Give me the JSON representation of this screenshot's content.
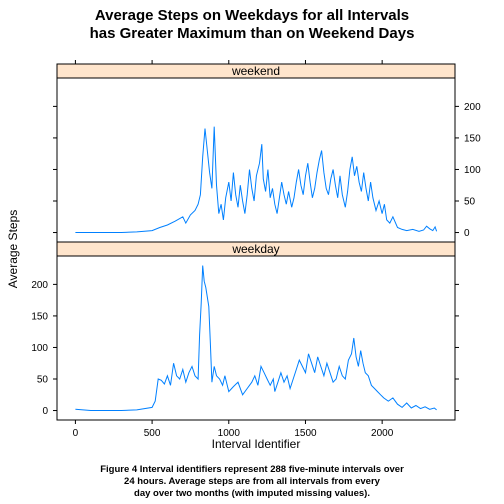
{
  "chart_data": {
    "type": "line",
    "title_lines": [
      "Average Steps on Weekdays for all Intervals",
      "has Greater Maximum than on Weekend Days"
    ],
    "xlabel": "Interval Identifier",
    "ylabel": "Average Steps",
    "caption_lines": [
      "Figure 4 Interval identifiers represent 288 five-minute intervals over",
      "24 hours. Average steps are from all intervals from every",
      "day over two months (with imputed missing values)."
    ],
    "xlim": [
      -120,
      2475
    ],
    "ylim": [
      -15,
      245
    ],
    "x_ticks": [
      0,
      500,
      1000,
      1500,
      2000
    ],
    "y_ticks": [
      0,
      50,
      100,
      150,
      200
    ],
    "colors": {
      "line": "#0080ff",
      "strip": "#ffe5cc",
      "frame": "#000000"
    },
    "panels": [
      {
        "name": "weekend",
        "y_axis_side": "right",
        "points": [
          [
            0,
            0
          ],
          [
            100,
            0
          ],
          [
            200,
            0
          ],
          [
            300,
            0
          ],
          [
            400,
            1
          ],
          [
            500,
            3
          ],
          [
            550,
            8
          ],
          [
            600,
            12
          ],
          [
            650,
            18
          ],
          [
            700,
            25
          ],
          [
            720,
            15
          ],
          [
            750,
            28
          ],
          [
            780,
            35
          ],
          [
            800,
            45
          ],
          [
            815,
            60
          ],
          [
            830,
            120
          ],
          [
            845,
            165
          ],
          [
            860,
            130
          ],
          [
            875,
            95
          ],
          [
            890,
            70
          ],
          [
            905,
            168
          ],
          [
            920,
            75
          ],
          [
            935,
            30
          ],
          [
            950,
            45
          ],
          [
            965,
            20
          ],
          [
            980,
            55
          ],
          [
            1000,
            80
          ],
          [
            1015,
            50
          ],
          [
            1030,
            95
          ],
          [
            1045,
            60
          ],
          [
            1060,
            40
          ],
          [
            1075,
            75
          ],
          [
            1090,
            50
          ],
          [
            1105,
            30
          ],
          [
            1120,
            60
          ],
          [
            1135,
            100
          ],
          [
            1150,
            70
          ],
          [
            1165,
            50
          ],
          [
            1180,
            90
          ],
          [
            1200,
            110
          ],
          [
            1215,
            140
          ],
          [
            1225,
            85
          ],
          [
            1240,
            65
          ],
          [
            1255,
            100
          ],
          [
            1270,
            55
          ],
          [
            1285,
            70
          ],
          [
            1300,
            45
          ],
          [
            1315,
            30
          ],
          [
            1330,
            55
          ],
          [
            1345,
            80
          ],
          [
            1360,
            60
          ],
          [
            1375,
            45
          ],
          [
            1390,
            65
          ],
          [
            1410,
            40
          ],
          [
            1425,
            55
          ],
          [
            1440,
            80
          ],
          [
            1455,
            100
          ],
          [
            1470,
            75
          ],
          [
            1485,
            60
          ],
          [
            1500,
            90
          ],
          [
            1515,
            110
          ],
          [
            1530,
            80
          ],
          [
            1545,
            55
          ],
          [
            1560,
            70
          ],
          [
            1575,
            95
          ],
          [
            1590,
            115
          ],
          [
            1605,
            130
          ],
          [
            1620,
            95
          ],
          [
            1635,
            70
          ],
          [
            1650,
            60
          ],
          [
            1665,
            85
          ],
          [
            1680,
            100
          ],
          [
            1695,
            75
          ],
          [
            1710,
            55
          ],
          [
            1725,
            90
          ],
          [
            1740,
            60
          ],
          [
            1760,
            40
          ],
          [
            1775,
            65
          ],
          [
            1790,
            100
          ],
          [
            1805,
            120
          ],
          [
            1820,
            90
          ],
          [
            1835,
            105
          ],
          [
            1850,
            80
          ],
          [
            1865,
            65
          ],
          [
            1880,
            95
          ],
          [
            1895,
            70
          ],
          [
            1910,
            50
          ],
          [
            1925,
            80
          ],
          [
            1940,
            55
          ],
          [
            1960,
            35
          ],
          [
            1980,
            50
          ],
          [
            2000,
            30
          ],
          [
            2015,
            45
          ],
          [
            2030,
            20
          ],
          [
            2050,
            15
          ],
          [
            2070,
            25
          ],
          [
            2100,
            8
          ],
          [
            2130,
            5
          ],
          [
            2160,
            3
          ],
          [
            2200,
            5
          ],
          [
            2240,
            2
          ],
          [
            2270,
            4
          ],
          [
            2290,
            10
          ],
          [
            2310,
            6
          ],
          [
            2330,
            3
          ],
          [
            2345,
            9
          ],
          [
            2355,
            2
          ]
        ]
      },
      {
        "name": "weekday",
        "y_axis_side": "left",
        "points": [
          [
            0,
            2
          ],
          [
            100,
            0
          ],
          [
            200,
            0
          ],
          [
            300,
            0
          ],
          [
            400,
            1
          ],
          [
            500,
            5
          ],
          [
            520,
            15
          ],
          [
            540,
            50
          ],
          [
            560,
            48
          ],
          [
            580,
            42
          ],
          [
            600,
            55
          ],
          [
            620,
            40
          ],
          [
            640,
            75
          ],
          [
            660,
            55
          ],
          [
            680,
            50
          ],
          [
            700,
            65
          ],
          [
            720,
            45
          ],
          [
            740,
            60
          ],
          [
            760,
            70
          ],
          [
            780,
            55
          ],
          [
            800,
            50
          ],
          [
            810,
            120
          ],
          [
            820,
            170
          ],
          [
            830,
            230
          ],
          [
            840,
            205
          ],
          [
            850,
            195
          ],
          [
            860,
            180
          ],
          [
            870,
            165
          ],
          [
            880,
            105
          ],
          [
            890,
            45
          ],
          [
            905,
            70
          ],
          [
            920,
            55
          ],
          [
            940,
            50
          ],
          [
            960,
            40
          ],
          [
            975,
            55
          ],
          [
            1000,
            30
          ],
          [
            1030,
            38
          ],
          [
            1060,
            45
          ],
          [
            1090,
            25
          ],
          [
            1120,
            35
          ],
          [
            1150,
            45
          ],
          [
            1170,
            55
          ],
          [
            1190,
            40
          ],
          [
            1210,
            70
          ],
          [
            1230,
            60
          ],
          [
            1250,
            50
          ],
          [
            1270,
            40
          ],
          [
            1290,
            50
          ],
          [
            1300,
            30
          ],
          [
            1320,
            45
          ],
          [
            1340,
            60
          ],
          [
            1360,
            45
          ],
          [
            1380,
            55
          ],
          [
            1400,
            35
          ],
          [
            1420,
            50
          ],
          [
            1440,
            65
          ],
          [
            1460,
            80
          ],
          [
            1480,
            70
          ],
          [
            1500,
            60
          ],
          [
            1520,
            90
          ],
          [
            1540,
            75
          ],
          [
            1560,
            60
          ],
          [
            1580,
            85
          ],
          [
            1600,
            70
          ],
          [
            1620,
            55
          ],
          [
            1640,
            75
          ],
          [
            1660,
            60
          ],
          [
            1680,
            45
          ],
          [
            1700,
            50
          ],
          [
            1720,
            70
          ],
          [
            1740,
            55
          ],
          [
            1760,
            50
          ],
          [
            1780,
            80
          ],
          [
            1800,
            90
          ],
          [
            1815,
            115
          ],
          [
            1830,
            85
          ],
          [
            1845,
            70
          ],
          [
            1860,
            95
          ],
          [
            1875,
            75
          ],
          [
            1890,
            60
          ],
          [
            1910,
            55
          ],
          [
            1930,
            40
          ],
          [
            1950,
            35
          ],
          [
            1970,
            30
          ],
          [
            1990,
            25
          ],
          [
            2010,
            20
          ],
          [
            2040,
            15
          ],
          [
            2070,
            20
          ],
          [
            2100,
            10
          ],
          [
            2130,
            5
          ],
          [
            2160,
            12
          ],
          [
            2190,
            4
          ],
          [
            2220,
            8
          ],
          [
            2250,
            3
          ],
          [
            2280,
            6
          ],
          [
            2310,
            2
          ],
          [
            2340,
            4
          ],
          [
            2355,
            1
          ]
        ]
      }
    ]
  }
}
